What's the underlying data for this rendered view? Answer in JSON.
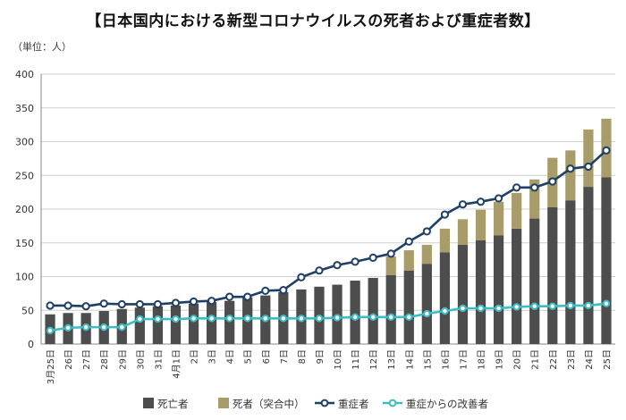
{
  "chart_data": {
    "type": "bar",
    "title": "【日本国内における新型コロナウイルスの死者および重症者数】",
    "unit_label": "（単位：人）",
    "ylim": [
      0,
      400
    ],
    "yticks": [
      0,
      50,
      100,
      150,
      200,
      250,
      300,
      350,
      400
    ],
    "grid": true,
    "legend_position": "bottom",
    "categories": [
      "3月25日",
      "26日",
      "27日",
      "28日",
      "29日",
      "30日",
      "31日",
      "4月1日",
      "2日",
      "3日",
      "4日",
      "5日",
      "6日",
      "7日",
      "8日",
      "9日",
      "10日",
      "11日",
      "12日",
      "13日",
      "14日",
      "15日",
      "16日",
      "17日",
      "18日",
      "19日",
      "20日",
      "21日",
      "22日",
      "23日",
      "24日",
      "25日"
    ],
    "series": [
      {
        "name": "死亡者",
        "kind": "bar",
        "stack": "deaths",
        "color": "#4d4d4d",
        "values": [
          44,
          46,
          46,
          49,
          52,
          54,
          56,
          57,
          60,
          62,
          64,
          69,
          72,
          77,
          81,
          85,
          88,
          94,
          98,
          102,
          109,
          119,
          136,
          147,
          154,
          161,
          171,
          186,
          203,
          213,
          233,
          247
        ]
      },
      {
        "name": "死者（突合中）",
        "kind": "bar",
        "stack": "deaths",
        "color": "#a89c6a",
        "values": [
          0,
          0,
          0,
          0,
          0,
          0,
          0,
          0,
          0,
          0,
          0,
          0,
          0,
          0,
          0,
          0,
          0,
          0,
          0,
          28,
          30,
          28,
          35,
          38,
          45,
          50,
          53,
          58,
          73,
          74,
          85,
          87
        ]
      },
      {
        "name": "重症者",
        "kind": "line",
        "color": "#1e3f66",
        "values": [
          57,
          57,
          56,
          60,
          59,
          59,
          59,
          61,
          63,
          64,
          70,
          70,
          79,
          80,
          99,
          109,
          117,
          122,
          128,
          134,
          152,
          167,
          192,
          207,
          211,
          216,
          232,
          232,
          241,
          260,
          263,
          287
        ]
      },
      {
        "name": "重症からの改善者",
        "kind": "line",
        "color": "#3dbcc4",
        "values": [
          20,
          24,
          25,
          25,
          25,
          37,
          37,
          37,
          38,
          38,
          38,
          38,
          38,
          38,
          38,
          38,
          39,
          40,
          40,
          40,
          40,
          45,
          49,
          53,
          53,
          53,
          55,
          56,
          56,
          57,
          57,
          60
        ]
      }
    ]
  }
}
